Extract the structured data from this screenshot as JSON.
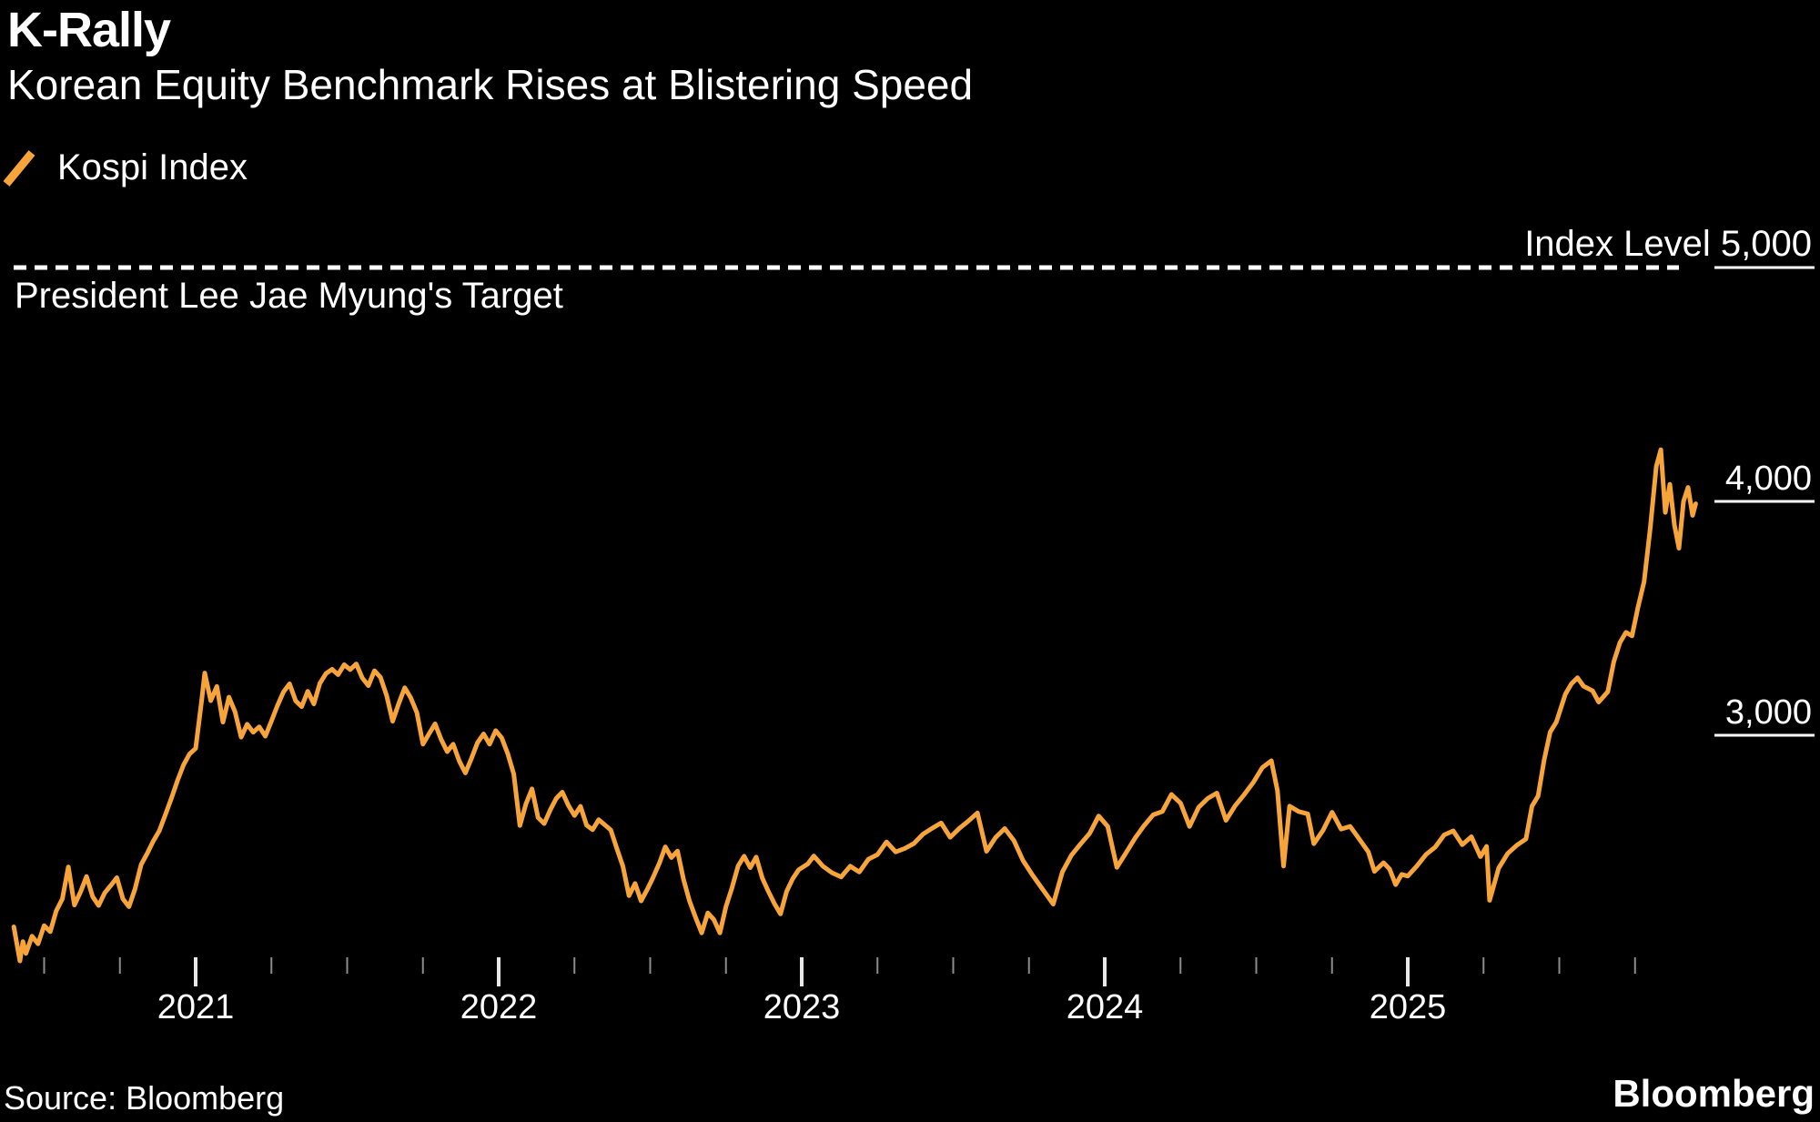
{
  "header": {
    "title": "K-Rally",
    "subtitle": "Korean Equity Benchmark Rises at Blistering Speed"
  },
  "legend": {
    "label": "Kospi Index",
    "swatch_color": "#F7A43B"
  },
  "footer": {
    "source": "Source: Bloomberg",
    "logo": "Bloomberg"
  },
  "colors": {
    "background": "#000000",
    "line": "#F7A43B",
    "text": "#FFFFFF",
    "major_tick": "#E8E8E8",
    "minor_tick": "#8C8C8C",
    "target_line": "#FFFFFF"
  },
  "chart_data": {
    "type": "line",
    "title": "K-Rally",
    "subtitle": "Korean Equity Benchmark Rises at Blistering Speed",
    "legend_position": "top-left",
    "grid": "off",
    "x_range": [
      2020.4,
      2025.95
    ],
    "ylim": [
      1950,
      5150
    ],
    "x_ticks_major": [
      2021,
      2022,
      2023,
      2024,
      2025
    ],
    "x_tick_labels": [
      "2021",
      "2022",
      "2023",
      "2024",
      "2025"
    ],
    "x_minor_step_years": 0.25,
    "y_axis": {
      "side": "right",
      "ticks": [
        {
          "label": "3,000",
          "value": 3000
        },
        {
          "label": "4,000",
          "value": 4000
        },
        {
          "label": "Index Level 5,000",
          "value": 5000
        }
      ]
    },
    "target_line": {
      "value": 5000,
      "style": "dashed",
      "label": "President Lee Jae Myung's Target",
      "right_label": "Index Level 5,000"
    },
    "series": [
      {
        "name": "Kospi Index",
        "color": "#F7A43B",
        "points": [
          [
            2020.4,
            2181
          ],
          [
            2020.42,
            2035
          ],
          [
            2020.43,
            2118
          ],
          [
            2020.44,
            2067
          ],
          [
            2020.46,
            2141
          ],
          [
            2020.48,
            2108
          ],
          [
            2020.5,
            2186
          ],
          [
            2020.52,
            2160
          ],
          [
            2020.54,
            2249
          ],
          [
            2020.56,
            2300
          ],
          [
            2020.58,
            2437
          ],
          [
            2020.6,
            2274
          ],
          [
            2020.62,
            2330
          ],
          [
            2020.64,
            2396
          ],
          [
            2020.66,
            2310
          ],
          [
            2020.68,
            2272
          ],
          [
            2020.7,
            2326
          ],
          [
            2020.72,
            2358
          ],
          [
            2020.74,
            2391
          ],
          [
            2020.76,
            2300
          ],
          [
            2020.78,
            2267
          ],
          [
            2020.8,
            2343
          ],
          [
            2020.82,
            2447
          ],
          [
            2020.84,
            2494
          ],
          [
            2020.86,
            2547
          ],
          [
            2020.88,
            2591
          ],
          [
            2020.9,
            2660
          ],
          [
            2020.92,
            2731
          ],
          [
            2020.94,
            2806
          ],
          [
            2020.96,
            2873
          ],
          [
            2020.98,
            2920
          ],
          [
            2021.0,
            2944
          ],
          [
            2021.02,
            3152
          ],
          [
            2021.03,
            3266
          ],
          [
            2021.05,
            3148
          ],
          [
            2021.07,
            3209
          ],
          [
            2021.09,
            3056
          ],
          [
            2021.11,
            3163
          ],
          [
            2021.13,
            3100
          ],
          [
            2021.15,
            2992
          ],
          [
            2021.17,
            3047
          ],
          [
            2021.19,
            3013
          ],
          [
            2021.21,
            3036
          ],
          [
            2021.23,
            2996
          ],
          [
            2021.25,
            3061
          ],
          [
            2021.27,
            3127
          ],
          [
            2021.29,
            3186
          ],
          [
            2021.31,
            3220
          ],
          [
            2021.33,
            3147
          ],
          [
            2021.35,
            3122
          ],
          [
            2021.37,
            3188
          ],
          [
            2021.39,
            3134
          ],
          [
            2021.41,
            3222
          ],
          [
            2021.43,
            3264
          ],
          [
            2021.45,
            3282
          ],
          [
            2021.47,
            3259
          ],
          [
            2021.49,
            3302
          ],
          [
            2021.51,
            3281
          ],
          [
            2021.53,
            3305
          ],
          [
            2021.55,
            3245
          ],
          [
            2021.57,
            3212
          ],
          [
            2021.59,
            3276
          ],
          [
            2021.61,
            3248
          ],
          [
            2021.63,
            3171
          ],
          [
            2021.65,
            3060
          ],
          [
            2021.67,
            3135
          ],
          [
            2021.69,
            3203
          ],
          [
            2021.71,
            3160
          ],
          [
            2021.73,
            3097
          ],
          [
            2021.75,
            2962
          ],
          [
            2021.77,
            3006
          ],
          [
            2021.79,
            3049
          ],
          [
            2021.81,
            2983
          ],
          [
            2021.83,
            2930
          ],
          [
            2021.85,
            2962
          ],
          [
            2021.87,
            2890
          ],
          [
            2021.89,
            2839
          ],
          [
            2021.91,
            2900
          ],
          [
            2021.93,
            2968
          ],
          [
            2021.95,
            3006
          ],
          [
            2021.97,
            2962
          ],
          [
            2021.99,
            3020
          ],
          [
            2022.01,
            2989
          ],
          [
            2022.03,
            2921
          ],
          [
            2022.05,
            2834
          ],
          [
            2022.07,
            2614
          ],
          [
            2022.09,
            2707
          ],
          [
            2022.11,
            2771
          ],
          [
            2022.13,
            2648
          ],
          [
            2022.15,
            2622
          ],
          [
            2022.17,
            2680
          ],
          [
            2022.19,
            2730
          ],
          [
            2022.21,
            2757
          ],
          [
            2022.23,
            2700
          ],
          [
            2022.25,
            2657
          ],
          [
            2022.27,
            2696
          ],
          [
            2022.29,
            2615
          ],
          [
            2022.31,
            2596
          ],
          [
            2022.33,
            2639
          ],
          [
            2022.35,
            2617
          ],
          [
            2022.37,
            2595
          ],
          [
            2022.39,
            2515
          ],
          [
            2022.41,
            2440
          ],
          [
            2022.43,
            2314
          ],
          [
            2022.45,
            2366
          ],
          [
            2022.47,
            2292
          ],
          [
            2022.49,
            2340
          ],
          [
            2022.51,
            2393
          ],
          [
            2022.53,
            2452
          ],
          [
            2022.55,
            2523
          ],
          [
            2022.57,
            2477
          ],
          [
            2022.59,
            2505
          ],
          [
            2022.61,
            2384
          ],
          [
            2022.63,
            2290
          ],
          [
            2022.65,
            2220
          ],
          [
            2022.67,
            2155
          ],
          [
            2022.69,
            2240
          ],
          [
            2022.71,
            2212
          ],
          [
            2022.73,
            2155
          ],
          [
            2022.75,
            2268
          ],
          [
            2022.77,
            2348
          ],
          [
            2022.79,
            2441
          ],
          [
            2022.81,
            2483
          ],
          [
            2022.83,
            2434
          ],
          [
            2022.85,
            2479
          ],
          [
            2022.87,
            2389
          ],
          [
            2022.89,
            2332
          ],
          [
            2022.91,
            2280
          ],
          [
            2022.93,
            2236
          ],
          [
            2022.95,
            2332
          ],
          [
            2022.97,
            2386
          ],
          [
            2022.99,
            2425
          ],
          [
            2023.02,
            2450
          ],
          [
            2023.04,
            2484
          ],
          [
            2023.07,
            2440
          ],
          [
            2023.1,
            2412
          ],
          [
            2023.13,
            2394
          ],
          [
            2023.16,
            2440
          ],
          [
            2023.19,
            2415
          ],
          [
            2023.22,
            2470
          ],
          [
            2023.25,
            2490
          ],
          [
            2023.28,
            2544
          ],
          [
            2023.31,
            2501
          ],
          [
            2023.34,
            2516
          ],
          [
            2023.37,
            2537
          ],
          [
            2023.4,
            2577
          ],
          [
            2023.43,
            2602
          ],
          [
            2023.46,
            2625
          ],
          [
            2023.49,
            2564
          ],
          [
            2023.52,
            2602
          ],
          [
            2023.55,
            2633
          ],
          [
            2023.58,
            2668
          ],
          [
            2023.61,
            2504
          ],
          [
            2023.64,
            2563
          ],
          [
            2023.67,
            2601
          ],
          [
            2023.7,
            2550
          ],
          [
            2023.73,
            2465
          ],
          [
            2023.76,
            2405
          ],
          [
            2023.79,
            2350
          ],
          [
            2023.83,
            2278
          ],
          [
            2023.86,
            2415
          ],
          [
            2023.89,
            2487
          ],
          [
            2023.92,
            2535
          ],
          [
            2023.95,
            2580
          ],
          [
            2023.98,
            2655
          ],
          [
            2024.01,
            2610
          ],
          [
            2024.04,
            2435
          ],
          [
            2024.07,
            2497
          ],
          [
            2024.1,
            2560
          ],
          [
            2024.13,
            2614
          ],
          [
            2024.16,
            2660
          ],
          [
            2024.19,
            2674
          ],
          [
            2024.22,
            2747
          ],
          [
            2024.25,
            2710
          ],
          [
            2024.28,
            2610
          ],
          [
            2024.31,
            2692
          ],
          [
            2024.34,
            2730
          ],
          [
            2024.37,
            2753
          ],
          [
            2024.4,
            2636
          ],
          [
            2024.43,
            2698
          ],
          [
            2024.46,
            2746
          ],
          [
            2024.49,
            2798
          ],
          [
            2024.52,
            2862
          ],
          [
            2024.55,
            2891
          ],
          [
            2024.57,
            2763
          ],
          [
            2024.59,
            2441
          ],
          [
            2024.61,
            2697
          ],
          [
            2024.64,
            2674
          ],
          [
            2024.67,
            2664
          ],
          [
            2024.69,
            2536
          ],
          [
            2024.72,
            2593
          ],
          [
            2024.75,
            2671
          ],
          [
            2024.78,
            2599
          ],
          [
            2024.81,
            2610
          ],
          [
            2024.84,
            2556
          ],
          [
            2024.87,
            2501
          ],
          [
            2024.89,
            2418
          ],
          [
            2024.92,
            2455
          ],
          [
            2024.94,
            2428
          ],
          [
            2024.96,
            2361
          ],
          [
            2024.98,
            2405
          ],
          [
            2025.0,
            2398
          ],
          [
            2025.03,
            2441
          ],
          [
            2025.06,
            2490
          ],
          [
            2025.09,
            2521
          ],
          [
            2025.12,
            2574
          ],
          [
            2025.15,
            2591
          ],
          [
            2025.18,
            2532
          ],
          [
            2025.21,
            2566
          ],
          [
            2025.24,
            2481
          ],
          [
            2025.26,
            2525
          ],
          [
            2025.27,
            2294
          ],
          [
            2025.3,
            2432
          ],
          [
            2025.33,
            2495
          ],
          [
            2025.36,
            2530
          ],
          [
            2025.39,
            2557
          ],
          [
            2025.41,
            2697
          ],
          [
            2025.43,
            2740
          ],
          [
            2025.45,
            2895
          ],
          [
            2025.47,
            3014
          ],
          [
            2025.49,
            3056
          ],
          [
            2025.52,
            3176
          ],
          [
            2025.54,
            3220
          ],
          [
            2025.56,
            3246
          ],
          [
            2025.58,
            3210
          ],
          [
            2025.61,
            3190
          ],
          [
            2025.63,
            3142
          ],
          [
            2025.66,
            3186
          ],
          [
            2025.68,
            3314
          ],
          [
            2025.7,
            3396
          ],
          [
            2025.72,
            3440
          ],
          [
            2025.74,
            3425
          ],
          [
            2025.76,
            3549
          ],
          [
            2025.78,
            3657
          ],
          [
            2025.8,
            3883
          ],
          [
            2025.82,
            4150
          ],
          [
            2025.835,
            4221
          ],
          [
            2025.85,
            3953
          ],
          [
            2025.865,
            4073
          ],
          [
            2025.88,
            3900
          ],
          [
            2025.895,
            3800
          ],
          [
            2025.91,
            4000
          ],
          [
            2025.925,
            4060
          ],
          [
            2025.94,
            3940
          ],
          [
            2025.95,
            3990
          ]
        ]
      }
    ]
  }
}
